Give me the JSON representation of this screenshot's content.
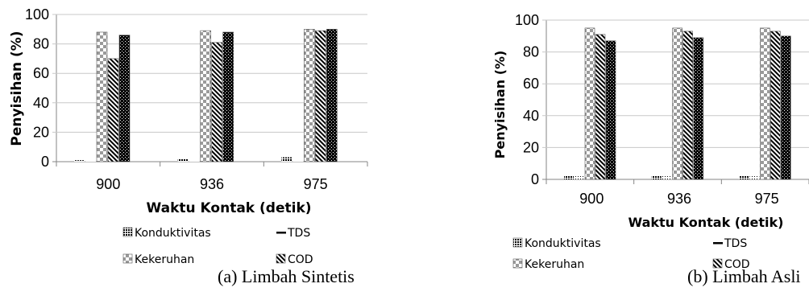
{
  "chart_data": [
    {
      "type": "bar",
      "caption": "(a)  Limbah Sintetis",
      "xlabel": "Waktu Kontak (detik)",
      "ylabel": "Penyisihan (%)",
      "ylim": [
        0,
        100
      ],
      "yticks": [
        "0",
        "20",
        "40",
        "60",
        "80",
        "100"
      ],
      "grid": true,
      "legend_position": "bottom",
      "categories": [
        "900",
        "936",
        "975"
      ],
      "series": [
        {
          "name": "Konduktivitas",
          "values": [
            1,
            2,
            3
          ]
        },
        {
          "name": "TDS",
          "values": [
            1,
            1,
            1
          ]
        },
        {
          "name": "Kekeruhan",
          "values": [
            88,
            89,
            90
          ]
        },
        {
          "name": "COD",
          "values": [
            70,
            81,
            89
          ]
        },
        {
          "name": "",
          "values": [
            86,
            88,
            90
          ]
        }
      ]
    },
    {
      "type": "bar",
      "caption": "(b) Limbah Asli",
      "xlabel": "Waktu Kontak (detik)",
      "ylabel": "Penyisihan (%)",
      "ylim": [
        0,
        100
      ],
      "yticks": [
        "0",
        "20",
        "40",
        "60",
        "80",
        "100"
      ],
      "grid": true,
      "legend_position": "bottom",
      "categories": [
        "900",
        "936",
        "975"
      ],
      "series": [
        {
          "name": "Konduktivitas",
          "values": [
            2,
            2,
            2
          ]
        },
        {
          "name": "TDS",
          "values": [
            2,
            2,
            2
          ]
        },
        {
          "name": "Kekeruhan",
          "values": [
            95,
            95,
            95
          ]
        },
        {
          "name": "COD",
          "values": [
            91,
            93,
            93
          ]
        },
        {
          "name": "",
          "values": [
            87,
            89,
            90
          ]
        }
      ]
    }
  ]
}
